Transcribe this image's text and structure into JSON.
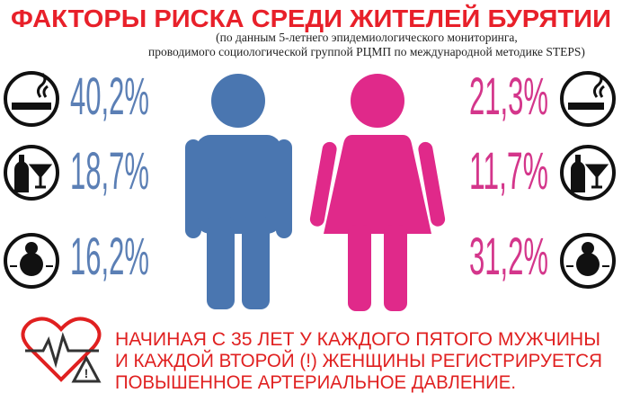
{
  "header": {
    "title": "ФАКТОРЫ РИСКА СРЕДИ ЖИТЕЛЕЙ БУРЯТИИ",
    "subtitle": [
      "(по данным 5-летнего эпидемиологического мониторинга,",
      "проводимого социологической группой РЦМП по международной методике STEPS)"
    ]
  },
  "men": [
    "40,2%",
    "18,7%",
    "16,2%"
  ],
  "women": [
    "21,3%",
    "11,7%",
    "31,2%"
  ],
  "note": [
    "НАЧИНАЯ С 35 ЛЕТ У КАЖДОГО ПЯТОГО МУЖЧИНЫ",
    "И КАЖДОЙ ВТОРОЙ (!) ЖЕНЩИНЫ РЕГИСТРИРУЕТСЯ",
    "ПОВЫШЕННОЕ АРТЕРИАЛЬНОЕ ДАВЛЕНИЕ."
  ]
}
